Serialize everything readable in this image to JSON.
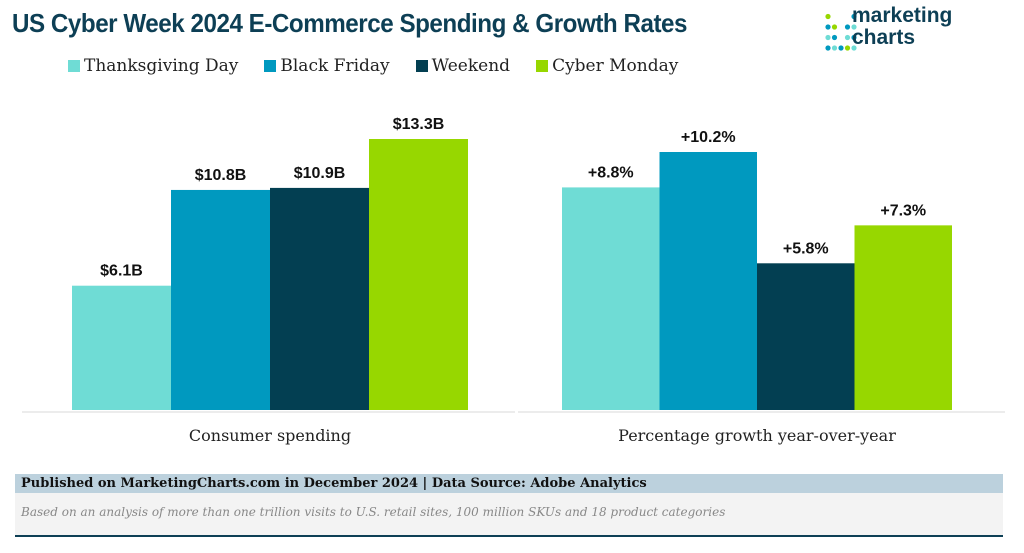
{
  "header": {
    "title": "US Cyber Week 2024 E-Commerce Spending & Growth Rates",
    "logo_text": "marketing charts"
  },
  "colors": {
    "Thanksgiving Day": "#6fdcd5",
    "Black Friday": "#0099bf",
    "Weekend": "#033f52",
    "Cyber Monday": "#97d700",
    "title": "#0d3f55"
  },
  "chart_data": [
    {
      "type": "bar",
      "xlabel": "Consumer spending",
      "categories": [
        "Thanksgiving Day",
        "Black Friday",
        "Weekend",
        "Cyber Monday"
      ],
      "values": [
        6.1,
        10.8,
        10.9,
        13.3
      ],
      "data_labels": [
        "$6.1B",
        "$10.8B",
        "$10.9B",
        "$13.3B"
      ],
      "unit": "$B",
      "ylim": [
        0,
        13.3
      ],
      "grid": false,
      "legend": "top"
    },
    {
      "type": "bar",
      "xlabel": "Percentage growth year-over-year",
      "categories": [
        "Thanksgiving Day",
        "Black Friday",
        "Weekend",
        "Cyber Monday"
      ],
      "values": [
        8.8,
        10.2,
        5.8,
        7.3
      ],
      "data_labels": [
        "+8.8%",
        "+10.2%",
        "+5.8%",
        "+7.3%"
      ],
      "unit": "%",
      "ylim": [
        0,
        10.2
      ],
      "grid": false,
      "legend": "top"
    }
  ],
  "legend": [
    "Thanksgiving Day",
    "Black Friday",
    "Weekend",
    "Cyber Monday"
  ],
  "footer": {
    "published": "Published on MarketingCharts.com in December 2024 | Data Source: Adobe Analytics",
    "note": "Based on an analysis of more than one trillion visits to U.S. retail sites, 100 million SKUs and 18 product categories"
  }
}
